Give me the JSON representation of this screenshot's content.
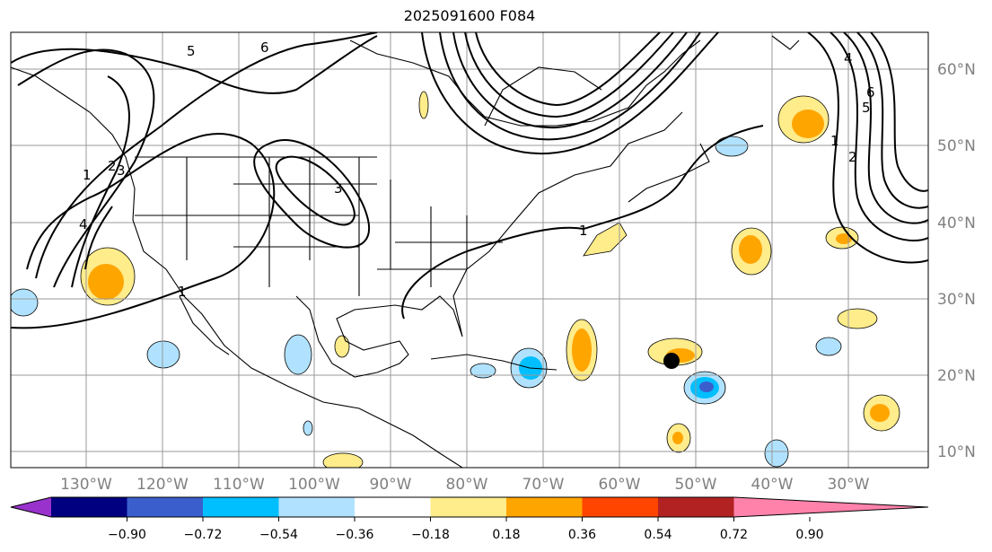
{
  "title": "2025091600 F084",
  "map": {
    "lon_labels": [
      "130°W",
      "120°W",
      "110°W",
      "100°W",
      "90°W",
      "80°W",
      "70°W",
      "60°W",
      "50°W",
      "40°W",
      "30°W"
    ],
    "lat_labels": [
      "60°N",
      "50°N",
      "40°N",
      "30°N",
      "20°N",
      "10°N"
    ],
    "contour_labels": [
      "1",
      "2",
      "3",
      "4",
      "5",
      "6",
      "1",
      "1",
      "1",
      "2",
      "3",
      "4",
      "5",
      "6"
    ],
    "marker": {
      "lon": -54.5,
      "lat": 22.0
    }
  },
  "colorbar": {
    "ticks": [
      "−0.90",
      "−0.72",
      "−0.54",
      "−0.36",
      "−0.18",
      "0.18",
      "0.36",
      "0.54",
      "0.72",
      "0.90"
    ],
    "colors": [
      "#9932cc",
      "#000080",
      "#3a5fcd",
      "#00bfff",
      "#b0e2ff",
      "#ffffff",
      "#ffec8b",
      "#ffa500",
      "#ff4500",
      "#b22222",
      "#ff82ab"
    ]
  }
}
